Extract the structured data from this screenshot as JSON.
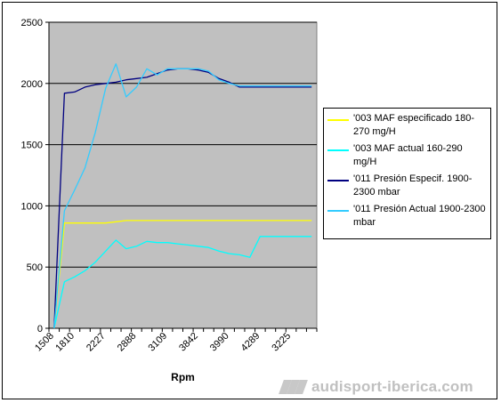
{
  "chart_data": {
    "type": "line",
    "xlabel": "Rpm",
    "ylabel": "",
    "ylim": [
      0,
      2500
    ],
    "yticks": [
      0,
      500,
      1000,
      1500,
      2000,
      2500
    ],
    "grid": "horizontal",
    "legend_position": "right",
    "plot_background": "#c0c0c0",
    "categories": [
      "1508",
      "",
      "1810",
      "",
      "",
      "2227",
      "",
      "",
      "2888",
      "",
      "",
      "3109",
      "",
      "",
      "3842",
      "",
      "",
      "3990",
      "",
      "",
      "4289",
      "",
      "",
      "3225",
      "",
      ""
    ],
    "series": [
      {
        "name": "'003 MAF especificado 180-270 mg/H",
        "color": "#ffff00",
        "values": [
          0,
          860,
          860,
          860,
          860,
          860,
          870,
          880,
          880,
          880,
          880,
          880,
          880,
          880,
          880,
          880,
          880,
          880,
          880,
          880,
          880,
          880,
          880,
          880,
          880,
          880
        ]
      },
      {
        "name": "'003 MAF actual 160-290 mg/H",
        "color": "#00ffff",
        "values": [
          0,
          380,
          420,
          470,
          540,
          630,
          720,
          650,
          670,
          710,
          700,
          700,
          690,
          680,
          670,
          660,
          630,
          610,
          600,
          580,
          750,
          750,
          750,
          750,
          750,
          750
        ]
      },
      {
        "name": "'011 Presión Especif. 1900-2300 mbar",
        "color": "#000080",
        "values": [
          0,
          1920,
          1930,
          1970,
          1990,
          2000,
          2010,
          2030,
          2040,
          2050,
          2080,
          2110,
          2120,
          2120,
          2110,
          2090,
          2040,
          2010,
          1970,
          1970,
          1970,
          1970,
          1970,
          1970,
          1970,
          1970
        ]
      },
      {
        "name": "'011 Presión Actual 1900-2300 mbar",
        "color": "#33ccff",
        "values": [
          0,
          960,
          1130,
          1310,
          1600,
          1960,
          2160,
          1890,
          1970,
          2120,
          2070,
          2120,
          2120,
          2120,
          2120,
          2100,
          2030,
          2000,
          1980,
          1980,
          1980,
          1980,
          1980,
          1980,
          1980,
          1980
        ]
      }
    ],
    "legend_entries": [
      "'003 MAF especificado 180-270 mg/H",
      "'003 MAF actual 160-290 mg/H",
      "'011 Presión Especif. 1900-2300 mbar",
      "'011 Presión Actual 1900-2300 mbar"
    ]
  },
  "watermark": {
    "text": "audisport-iberica.com"
  }
}
